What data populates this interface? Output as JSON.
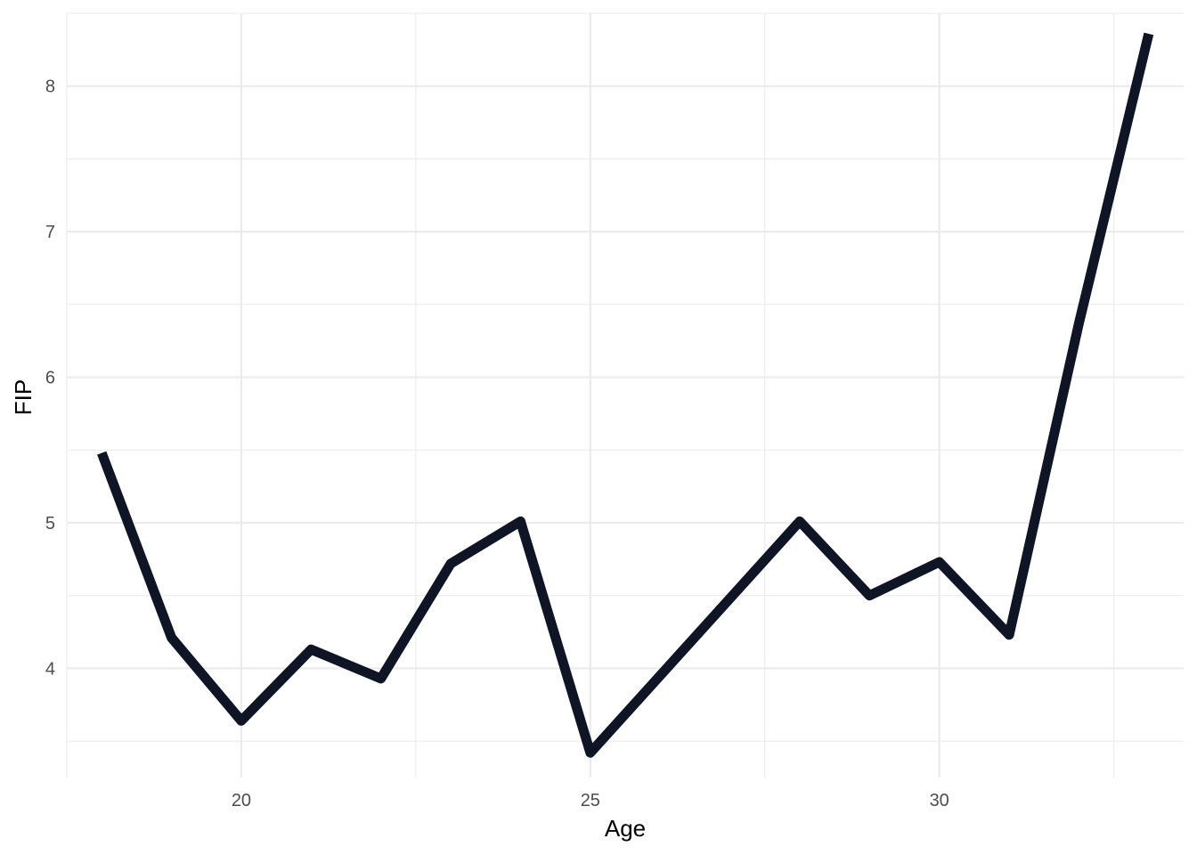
{
  "chart_data": {
    "type": "line",
    "xlabel": "Age",
    "ylabel": "FIP",
    "xlim": [
      17.5,
      33.5
    ],
    "ylim": [
      3.25,
      8.5
    ],
    "x_ticks": [
      20,
      25,
      30
    ],
    "y_ticks": [
      4,
      5,
      6,
      7,
      8
    ],
    "grid": true,
    "line_color": "#0f1524",
    "series": [
      {
        "x": [
          18,
          19,
          20,
          21,
          22,
          23,
          24,
          25,
          28,
          29,
          30,
          31,
          32,
          33
        ],
        "y": [
          5.48,
          4.21,
          3.64,
          4.13,
          3.93,
          4.72,
          5.01,
          3.42,
          5.01,
          4.5,
          4.73,
          4.23,
          6.37,
          8.36
        ]
      }
    ]
  }
}
